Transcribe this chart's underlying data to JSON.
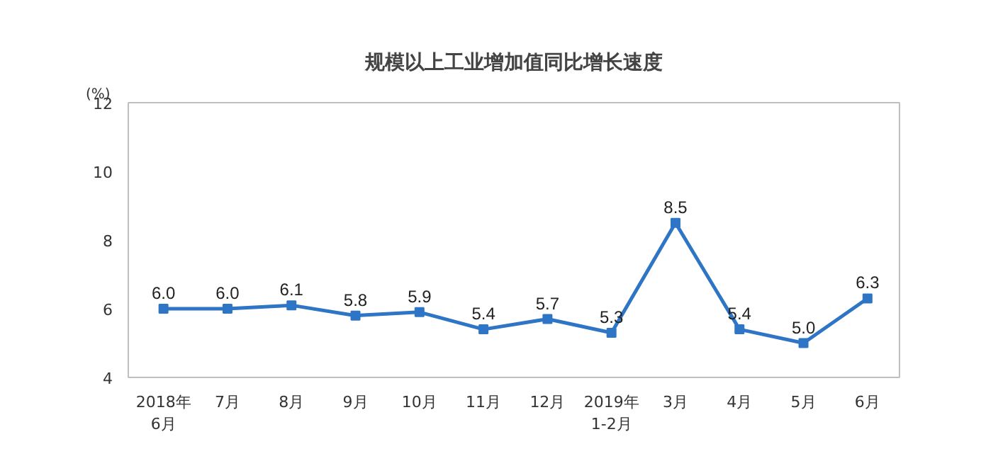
{
  "chart_data": {
    "type": "line",
    "title": "规模以上工业增加值同比增长速度",
    "ylabel": "(%)",
    "categories": [
      "2018年\n6月",
      "7月",
      "8月",
      "9月",
      "10月",
      "11月",
      "12月",
      "2019年\n1-2月",
      "3月",
      "4月",
      "5月",
      "6月"
    ],
    "series": [
      {
        "color": "#2e75c6",
        "values": [
          6.0,
          6.0,
          6.1,
          5.8,
          5.9,
          5.4,
          5.7,
          5.3,
          8.5,
          5.4,
          5.0,
          6.3
        ],
        "value_labels": [
          "6.0",
          "6.0",
          "6.1",
          "5.8",
          "5.9",
          "5.4",
          "5.7",
          "5.3",
          "8.5",
          "5.4",
          "5.0",
          "6.3"
        ]
      }
    ],
    "ylim": [
      4,
      12
    ],
    "yticks": [
      4,
      6,
      8,
      10,
      12
    ],
    "grid": false,
    "marker": "square",
    "line_style": "solid"
  }
}
